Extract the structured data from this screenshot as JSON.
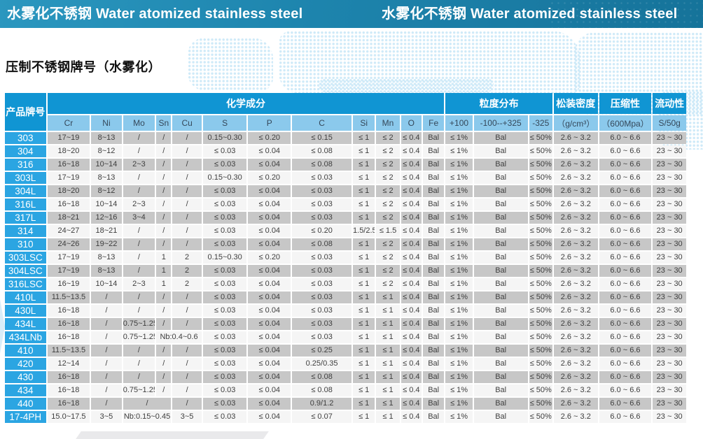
{
  "banner": {
    "title_left": "水雾化不锈钢 Water atomized stainless steel",
    "title_right": "水雾化不锈钢 Water atomized stainless steel"
  },
  "page": {
    "title": "压制不锈钢牌号（水雾化）"
  },
  "colors": {
    "banner_blue": "#1d84ad",
    "group_header_blue": "#1095d3",
    "product_header_blue": "#29a0d9",
    "sub_header_blue": "#8bc9ec",
    "grade_cell_blue": "#2ba5e2",
    "row_gray": "#c7c7c7",
    "row_light": "#f5f5f5"
  },
  "table": {
    "group_headers": {
      "product": "产品牌号",
      "chemistry": "化学成分",
      "psd": "粒度分布",
      "density": "松装密度",
      "compressibility": "压缩性",
      "flowability": "流动性"
    },
    "sub_headers": [
      "Cr",
      "Ni",
      "Mo",
      "Sn",
      "Cu",
      "S",
      "P",
      "C",
      "Si",
      "Mn",
      "O",
      "Fe",
      "+100",
      "-100--+325",
      "-325",
      "（g/cm³）",
      "（600Mpa）",
      "S/50g"
    ],
    "rows": [
      {
        "grade": "303",
        "cells": [
          "17~19",
          "8~13",
          "/",
          "/",
          "/",
          "0.15~0.30",
          "≤ 0.20",
          "≤ 0.15",
          "≤ 1",
          "≤ 2",
          "≤ 0.4",
          "Bal",
          "≤ 1%",
          "Bal",
          "≤ 50%",
          "2.6 ~ 3.2",
          "6.0 ~ 6.6",
          "23 ~ 30"
        ]
      },
      {
        "grade": "304",
        "cells": [
          "18~20",
          "8~12",
          "/",
          "/",
          "/",
          "≤ 0.03",
          "≤ 0.04",
          "≤ 0.08",
          "≤ 1",
          "≤ 2",
          "≤ 0.4",
          "Bal",
          "≤ 1%",
          "Bal",
          "≤ 50%",
          "2.6 ~ 3.2",
          "6.0 ~ 6.6",
          "23 ~ 30"
        ]
      },
      {
        "grade": "316",
        "cells": [
          "16~18",
          "10~14",
          "2~3",
          "/",
          "/",
          "≤ 0.03",
          "≤ 0.04",
          "≤ 0.08",
          "≤ 1",
          "≤ 2",
          "≤ 0.4",
          "Bal",
          "≤ 1%",
          "Bal",
          "≤ 50%",
          "2.6 ~ 3.2",
          "6.0 ~ 6.6",
          "23 ~ 30"
        ]
      },
      {
        "grade": "303L",
        "cells": [
          "17~19",
          "8~13",
          "/",
          "/",
          "/",
          "0.15~0.30",
          "≤ 0.20",
          "≤ 0.03",
          "≤ 1",
          "≤ 2",
          "≤ 0.4",
          "Bal",
          "≤ 1%",
          "Bal",
          "≤ 50%",
          "2.6 ~ 3.2",
          "6.0 ~ 6.6",
          "23 ~ 30"
        ]
      },
      {
        "grade": "304L",
        "cells": [
          "18~20",
          "8~12",
          "/",
          "/",
          "/",
          "≤ 0.03",
          "≤ 0.04",
          "≤ 0.03",
          "≤ 1",
          "≤ 2",
          "≤ 0.4",
          "Bal",
          "≤ 1%",
          "Bal",
          "≤ 50%",
          "2.6 ~ 3.2",
          "6.0 ~ 6.6",
          "23 ~ 30"
        ]
      },
      {
        "grade": "316L",
        "cells": [
          "16~18",
          "10~14",
          "2~3",
          "/",
          "/",
          "≤ 0.03",
          "≤ 0.04",
          "≤ 0.03",
          "≤ 1",
          "≤ 2",
          "≤ 0.4",
          "Bal",
          "≤ 1%",
          "Bal",
          "≤ 50%",
          "2.6 ~ 3.2",
          "6.0 ~ 6.6",
          "23 ~ 30"
        ]
      },
      {
        "grade": "317L",
        "cells": [
          "18~21",
          "12~16",
          "3~4",
          "/",
          "/",
          "≤ 0.03",
          "≤ 0.04",
          "≤ 0.03",
          "≤ 1",
          "≤ 2",
          "≤ 0.4",
          "Bal",
          "≤ 1%",
          "Bal",
          "≤ 50%",
          "2.6 ~ 3.2",
          "6.0 ~ 6.6",
          "23 ~ 30"
        ]
      },
      {
        "grade": "314",
        "cells": [
          "24~27",
          "18~21",
          "/",
          "/",
          "/",
          "≤ 0.03",
          "≤ 0.04",
          "≤ 0.20",
          "1.5/2.5",
          "≤ 1.5",
          "≤ 0.4",
          "Bal",
          "≤ 1%",
          "Bal",
          "≤ 50%",
          "2.6 ~ 3.2",
          "6.0 ~ 6.6",
          "23 ~ 30"
        ]
      },
      {
        "grade": "310",
        "cells": [
          "24~26",
          "19~22",
          "/",
          "/",
          "/",
          "≤ 0.03",
          "≤ 0.04",
          "≤ 0.08",
          "≤ 1",
          "≤ 2",
          "≤ 0.4",
          "Bal",
          "≤ 1%",
          "Bal",
          "≤ 50%",
          "2.6 ~ 3.2",
          "6.0 ~ 6.6",
          "23 ~ 30"
        ]
      },
      {
        "grade": "303LSC",
        "cells": [
          "17~19",
          "8~13",
          "/",
          "1",
          "2",
          "0.15~0.30",
          "≤ 0.20",
          "≤ 0.03",
          "≤ 1",
          "≤ 2",
          "≤ 0.4",
          "Bal",
          "≤ 1%",
          "Bal",
          "≤ 50%",
          "2.6 ~ 3.2",
          "6.0 ~ 6.6",
          "23 ~ 30"
        ]
      },
      {
        "grade": "304LSC",
        "cells": [
          "17~19",
          "8~13",
          "/",
          "1",
          "2",
          "≤ 0.03",
          "≤ 0.04",
          "≤ 0.03",
          "≤ 1",
          "≤ 2",
          "≤ 0.4",
          "Bal",
          "≤ 1%",
          "Bal",
          "≤ 50%",
          "2.6 ~ 3.2",
          "6.0 ~ 6.6",
          "23 ~ 30"
        ]
      },
      {
        "grade": "316LSC",
        "cells": [
          "16~19",
          "10~14",
          "2~3",
          "1",
          "2",
          "≤ 0.03",
          "≤ 0.04",
          "≤ 0.03",
          "≤ 1",
          "≤ 2",
          "≤ 0.4",
          "Bal",
          "≤ 1%",
          "Bal",
          "≤ 50%",
          "2.6 ~ 3.2",
          "6.0 ~ 6.6",
          "23 ~ 30"
        ]
      },
      {
        "grade": "410L",
        "cells": [
          "11.5~13.5",
          "/",
          "/",
          "/",
          "/",
          "≤ 0.03",
          "≤ 0.04",
          "≤ 0.03",
          "≤ 1",
          "≤ 1",
          "≤ 0.4",
          "Bal",
          "≤ 1%",
          "Bal",
          "≤ 50%",
          "2.6 ~ 3.2",
          "6.0 ~ 6.6",
          "23 ~ 30"
        ]
      },
      {
        "grade": "430L",
        "cells": [
          "16~18",
          "/",
          "/",
          "/",
          "/",
          "≤ 0.03",
          "≤ 0.04",
          "≤ 0.03",
          "≤ 1",
          "≤ 1",
          "≤ 0.4",
          "Bal",
          "≤ 1%",
          "Bal",
          "≤ 50%",
          "2.6 ~ 3.2",
          "6.0 ~ 6.6",
          "23 ~ 30"
        ]
      },
      {
        "grade": "434L",
        "cells": [
          "16~18",
          "/",
          "0.75~1.25",
          "/",
          "/",
          "≤ 0.03",
          "≤ 0.04",
          "≤ 0.03",
          "≤ 1",
          "≤ 1",
          "≤ 0.4",
          "Bal",
          "≤ 1%",
          "Bal",
          "≤ 50%",
          "2.6 ~ 3.2",
          "6.0 ~ 6.6",
          "23 ~ 30"
        ]
      },
      {
        "grade": "434LNb",
        "cells": [
          "16~18",
          "/",
          "0.75~1.25",
          {
            "text": "Nb:0.4~0.6",
            "colspan": 2
          },
          "≤ 0.03",
          "≤ 0.04",
          "≤ 0.03",
          "≤ 1",
          "≤ 1",
          "≤ 0.4",
          "Bal",
          "≤ 1%",
          "Bal",
          "≤ 50%",
          "2.6 ~ 3.2",
          "6.0 ~ 6.6",
          "23 ~ 30"
        ]
      },
      {
        "grade": "410",
        "cells": [
          "11.5~13.5",
          "/",
          "/",
          "/",
          "/",
          "≤ 0.03",
          "≤ 0.04",
          "≤ 0.25",
          "≤ 1",
          "≤ 1",
          "≤ 0.4",
          "Bal",
          "≤ 1%",
          "Bal",
          "≤ 50%",
          "2.6 ~ 3.2",
          "6.0 ~ 6.6",
          "23 ~ 30"
        ]
      },
      {
        "grade": "420",
        "cells": [
          "12~14",
          "/",
          "/",
          "/",
          "/",
          "≤ 0.03",
          "≤ 0.04",
          "0.25/0.35",
          "≤ 1",
          "≤ 1",
          "≤ 0.4",
          "Bal",
          "≤ 1%",
          "Bal",
          "≤ 50%",
          "2.6 ~ 3.2",
          "6.0 ~ 6.6",
          "23 ~ 30"
        ]
      },
      {
        "grade": "430",
        "cells": [
          "16~18",
          "/",
          "/",
          "/",
          "/",
          "≤ 0.03",
          "≤ 0.04",
          "≤ 0.08",
          "≤ 1",
          "≤ 1",
          "≤ 0.4",
          "Bal",
          "≤ 1%",
          "Bal",
          "≤ 50%",
          "2.6 ~ 3.2",
          "6.0 ~ 6.6",
          "23 ~ 30"
        ]
      },
      {
        "grade": "434",
        "cells": [
          "16~18",
          "/",
          "0.75~1.25",
          "/",
          "/",
          "≤ 0.03",
          "≤ 0.04",
          "≤ 0.08",
          "≤ 1",
          "≤ 1",
          "≤ 0.4",
          "Bal",
          "≤ 1%",
          "Bal",
          "≤ 50%",
          "2.6 ~ 3.2",
          "6.0 ~ 6.6",
          "23 ~ 30"
        ]
      },
      {
        "grade": "440",
        "cells": [
          "16~18",
          "/",
          {
            "text": "/",
            "colspan": 2
          },
          "/",
          "≤ 0.03",
          "≤ 0.04",
          "0.9/1.2",
          "≤ 1",
          "≤ 1",
          "≤ 0.4",
          "Bal",
          "≤ 1%",
          "Bal",
          "≤ 50%",
          "2.6 ~ 3.2",
          "6.0 ~ 6.6",
          "23 ~ 30"
        ]
      },
      {
        "grade": "17-4PH",
        "cells": [
          "15.0~17.5",
          "3~5",
          {
            "text": "Nb:0.15~0.45",
            "colspan": 2
          },
          "3~5",
          "≤ 0.03",
          "≤ 0.04",
          "≤ 0.07",
          "≤ 1",
          "≤ 1",
          "≤ 0.4",
          "Bal",
          "≤ 1%",
          "Bal",
          "≤ 50%",
          "2.6 ~ 3.2",
          "6.0 ~ 6.6",
          "23 ~ 30"
        ]
      }
    ]
  }
}
